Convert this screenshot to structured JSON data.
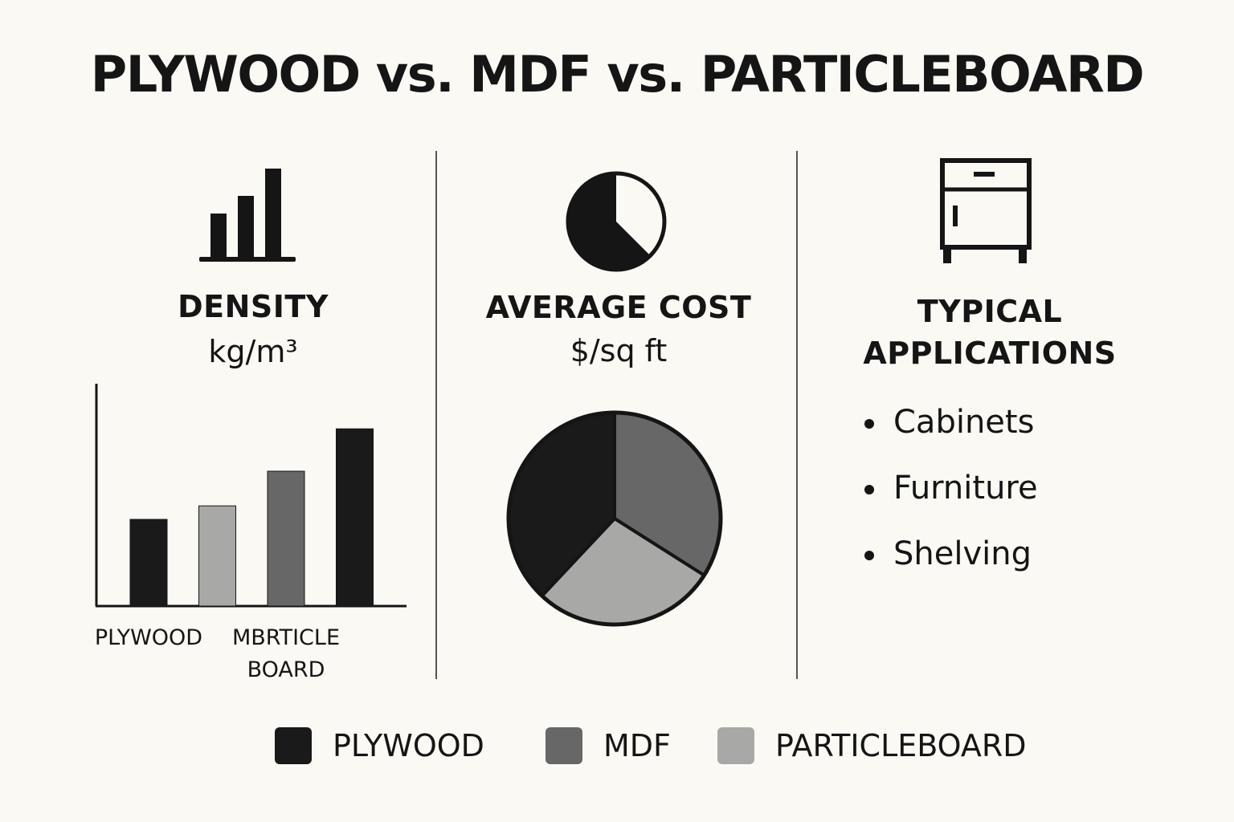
{
  "title": "PLYWOOD vs. MDF vs. PARTICLEBOARD",
  "colors": {
    "plywood": "#1a1a1a",
    "mdf": "#676767",
    "particleboard": "#a8a8a6",
    "background": "#fbf9f4",
    "ink": "#151515"
  },
  "density": {
    "icon": "bar-chart-icon",
    "heading": "DENSITY",
    "unit": "kg/m³"
  },
  "cost": {
    "icon": "pie-chart-icon",
    "heading": "AVERAGE COST",
    "unit": "$/sq ft"
  },
  "applications": {
    "icon": "cabinet-icon",
    "heading_line1": "TYPICAL",
    "heading_line2": "APPLICATIONS",
    "items": [
      "Cabinets",
      "Furniture",
      "Shelving"
    ]
  },
  "legend": [
    {
      "label": "PLYWOOD",
      "color": "#1a1a1a"
    },
    {
      "label": "MDF",
      "color": "#676767"
    },
    {
      "label": "PARTICLEBOARD",
      "color": "#a8a8a6"
    }
  ],
  "chart_data": [
    {
      "type": "bar",
      "title": "DENSITY",
      "ylabel": "kg/m³",
      "grid": false,
      "bars": [
        {
          "color": "#1a1a1a",
          "value": 45
        },
        {
          "color": "#a8a8a6",
          "value": 52
        },
        {
          "color": "#676767",
          "value": 70
        },
        {
          "color": "#1a1a1a",
          "value": 92
        }
      ],
      "tick_labels": [
        {
          "lines": [
            "PLYWOOD"
          ],
          "under_bar": 0.5
        },
        {
          "lines": [
            "MBRTICLE",
            "BOARD"
          ],
          "under_bar": 2.5
        }
      ],
      "ylim": [
        0,
        100
      ]
    },
    {
      "type": "pie",
      "title": "AVERAGE COST",
      "ylabel": "$/sq ft",
      "slices": [
        {
          "label": "MDF",
          "value": 34,
          "color": "#676767"
        },
        {
          "label": "PARTICLEBOARD",
          "value": 28,
          "color": "#a8a8a6"
        },
        {
          "label": "PLYWOOD",
          "value": 38,
          "color": "#1a1a1a"
        }
      ]
    }
  ]
}
